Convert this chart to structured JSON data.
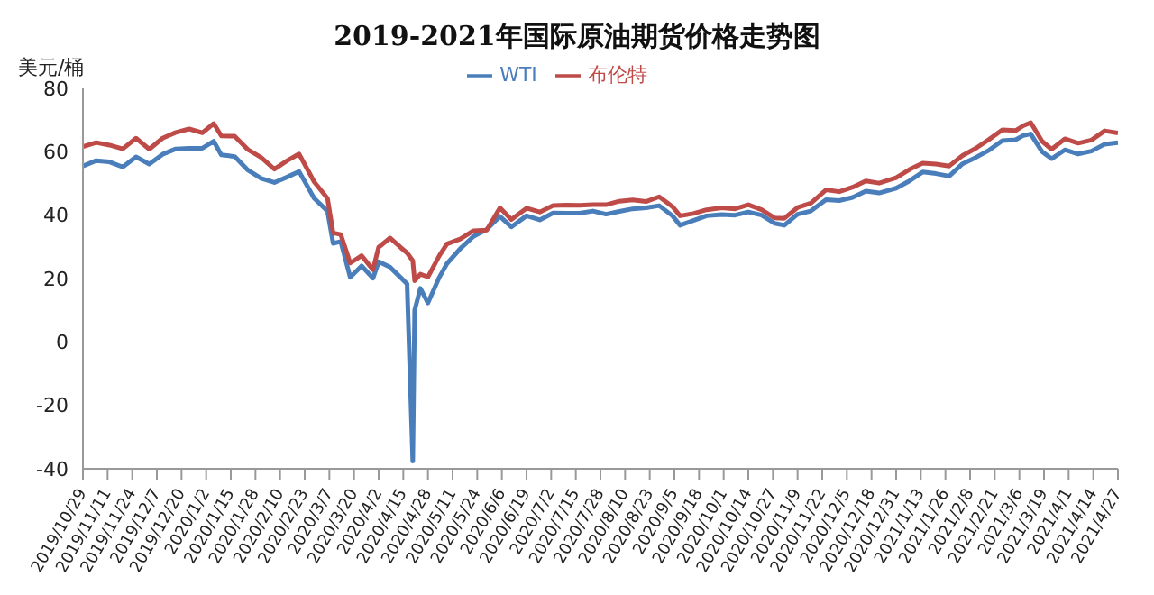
{
  "chart_data": {
    "type": "line",
    "title": "2019-2021年国际原油期货价格走势图",
    "ylabel": "美元/桶",
    "x": [
      "2019-10-29",
      "2019-11-05",
      "2019-11-12",
      "2019-11-19",
      "2019-11-26",
      "2019-12-03",
      "2019-12-10",
      "2019-12-17",
      "2019-12-24",
      "2019-12-31",
      "2020-01-06",
      "2020-01-10",
      "2020-01-17",
      "2020-01-24",
      "2020-01-31",
      "2020-02-07",
      "2020-02-14",
      "2020-02-20",
      "2020-02-28",
      "2020-03-06",
      "2020-03-09",
      "2020-03-13",
      "2020-03-18",
      "2020-03-24",
      "2020-03-30",
      "2020-04-02",
      "2020-04-08",
      "2020-04-14",
      "2020-04-17",
      "2020-04-20",
      "2020-04-21",
      "2020-04-24",
      "2020-04-28",
      "2020-05-04",
      "2020-05-08",
      "2020-05-15",
      "2020-05-22",
      "2020-05-29",
      "2020-06-05",
      "2020-06-11",
      "2020-06-19",
      "2020-06-26",
      "2020-07-03",
      "2020-07-10",
      "2020-07-17",
      "2020-07-24",
      "2020-07-31",
      "2020-08-07",
      "2020-08-14",
      "2020-08-21",
      "2020-08-28",
      "2020-09-04",
      "2020-09-08",
      "2020-09-15",
      "2020-09-22",
      "2020-09-30",
      "2020-10-07",
      "2020-10-14",
      "2020-10-21",
      "2020-10-28",
      "2020-11-02",
      "2020-11-09",
      "2020-11-16",
      "2020-11-24",
      "2020-12-01",
      "2020-12-08",
      "2020-12-15",
      "2020-12-22",
      "2020-12-31",
      "2021-01-07",
      "2021-01-14",
      "2021-01-21",
      "2021-01-28",
      "2021-02-04",
      "2021-02-11",
      "2021-02-18",
      "2021-02-25",
      "2021-03-04",
      "2021-03-08",
      "2021-03-12",
      "2021-03-18",
      "2021-03-23",
      "2021-03-30",
      "2021-04-06",
      "2021-04-13",
      "2021-04-20",
      "2021-04-27"
    ],
    "series": [
      {
        "name": "WTI",
        "color": "#4a7ebb",
        "values": [
          55.5,
          57.2,
          56.8,
          55.2,
          58.4,
          56.1,
          59.2,
          60.9,
          61.1,
          61.1,
          63.3,
          59.0,
          58.5,
          54.2,
          51.6,
          50.3,
          52.1,
          53.8,
          45.3,
          41.3,
          31.1,
          31.7,
          20.4,
          24.0,
          20.1,
          25.3,
          23.6,
          20.1,
          18.3,
          -37.6,
          10.0,
          16.9,
          12.3,
          20.4,
          24.7,
          29.4,
          33.3,
          35.5,
          39.6,
          36.3,
          39.8,
          38.5,
          40.7,
          40.6,
          40.6,
          41.3,
          40.3,
          41.2,
          42.0,
          42.3,
          43.0,
          39.8,
          36.8,
          38.3,
          39.8,
          40.2,
          40.0,
          41.0,
          40.0,
          37.4,
          36.8,
          40.3,
          41.3,
          44.9,
          44.6,
          45.6,
          47.6,
          47.0,
          48.5,
          50.8,
          53.6,
          53.1,
          52.3,
          56.2,
          58.2,
          60.5,
          63.5,
          63.8,
          65.1,
          65.6,
          60.0,
          57.8,
          60.6,
          59.3,
          60.2,
          62.4,
          62.9
        ]
      },
      {
        "name": "布伦特",
        "color": "#be4b48",
        "values": [
          61.6,
          62.9,
          62.1,
          60.9,
          64.3,
          60.8,
          64.3,
          66.1,
          67.2,
          66.0,
          68.9,
          65.0,
          64.9,
          60.7,
          58.2,
          54.5,
          57.3,
          59.3,
          50.5,
          45.3,
          34.4,
          33.9,
          24.9,
          27.2,
          22.8,
          29.9,
          32.8,
          29.6,
          28.1,
          25.6,
          19.3,
          21.4,
          20.5,
          27.2,
          30.9,
          32.5,
          35.1,
          35.3,
          42.3,
          38.6,
          42.2,
          41.0,
          43.0,
          43.2,
          43.1,
          43.3,
          43.3,
          44.4,
          44.8,
          44.3,
          45.8,
          42.7,
          39.8,
          40.5,
          41.7,
          42.3,
          42.0,
          43.3,
          41.7,
          39.1,
          39.0,
          42.4,
          43.8,
          48.0,
          47.4,
          48.8,
          50.8,
          50.1,
          51.8,
          54.4,
          56.4,
          56.1,
          55.5,
          58.8,
          61.1,
          63.9,
          66.9,
          66.7,
          68.2,
          69.2,
          63.3,
          60.8,
          64.1,
          62.7,
          63.7,
          66.6,
          65.9
        ]
      }
    ],
    "xlim": [
      "2019-10-29",
      "2021-04-27"
    ],
    "xticks": [
      {
        "value": "2019-10-29",
        "label": "2019/10/29"
      },
      {
        "value": "2019-11-11",
        "label": "2019/11/11"
      },
      {
        "value": "2019-11-24",
        "label": "2019/11/24"
      },
      {
        "value": "2019-12-07",
        "label": "2019/12/7"
      },
      {
        "value": "2019-12-20",
        "label": "2019/12/20"
      },
      {
        "value": "2020-01-02",
        "label": "2020/1/2"
      },
      {
        "value": "2020-01-15",
        "label": "2020/1/15"
      },
      {
        "value": "2020-01-28",
        "label": "2020/1/28"
      },
      {
        "value": "2020-02-10",
        "label": "2020/2/10"
      },
      {
        "value": "2020-02-23",
        "label": "2020/2/23"
      },
      {
        "value": "2020-03-07",
        "label": "2020/3/7"
      },
      {
        "value": "2020-03-20",
        "label": "2020/3/20"
      },
      {
        "value": "2020-04-02",
        "label": "2020/4/2"
      },
      {
        "value": "2020-04-15",
        "label": "2020/4/15"
      },
      {
        "value": "2020-04-28",
        "label": "2020/4/28"
      },
      {
        "value": "2020-05-11",
        "label": "2020/5/11"
      },
      {
        "value": "2020-05-24",
        "label": "2020/5/24"
      },
      {
        "value": "2020-06-06",
        "label": "2020/6/6"
      },
      {
        "value": "2020-06-19",
        "label": "2020/6/19"
      },
      {
        "value": "2020-07-02",
        "label": "2020/7/2"
      },
      {
        "value": "2020-07-15",
        "label": "2020/7/15"
      },
      {
        "value": "2020-07-28",
        "label": "2020/7/28"
      },
      {
        "value": "2020-08-10",
        "label": "2020/8/10"
      },
      {
        "value": "2020-08-23",
        "label": "2020/8/23"
      },
      {
        "value": "2020-09-05",
        "label": "2020/9/5"
      },
      {
        "value": "2020-09-18",
        "label": "2020/9/18"
      },
      {
        "value": "2020-10-01",
        "label": "2020/10/1"
      },
      {
        "value": "2020-10-14",
        "label": "2020/10/14"
      },
      {
        "value": "2020-10-27",
        "label": "2020/10/27"
      },
      {
        "value": "2020-11-09",
        "label": "2020/11/9"
      },
      {
        "value": "2020-11-22",
        "label": "2020/11/22"
      },
      {
        "value": "2020-12-05",
        "label": "2020/12/5"
      },
      {
        "value": "2020-12-18",
        "label": "2020/12/18"
      },
      {
        "value": "2020-12-31",
        "label": "2020/12/31"
      },
      {
        "value": "2021-01-13",
        "label": "2021/1/13"
      },
      {
        "value": "2021-01-26",
        "label": "2021/1/26"
      },
      {
        "value": "2021-02-08",
        "label": "2021/2/8"
      },
      {
        "value": "2021-02-21",
        "label": "2021/2/21"
      },
      {
        "value": "2021-03-06",
        "label": "2021/3/6"
      },
      {
        "value": "2021-03-19",
        "label": "2021/3/19"
      },
      {
        "value": "2021-04-01",
        "label": "2021/4/1"
      },
      {
        "value": "2021-04-14",
        "label": "2021/4/14"
      },
      {
        "value": "2021-04-27",
        "label": "2021/4/27"
      }
    ],
    "ylim": [
      -40,
      80
    ],
    "yticks": [
      -40,
      -20,
      0,
      20,
      40,
      60,
      80
    ],
    "grid": false,
    "legend": "top",
    "marker": "none",
    "line_style": "solid"
  }
}
